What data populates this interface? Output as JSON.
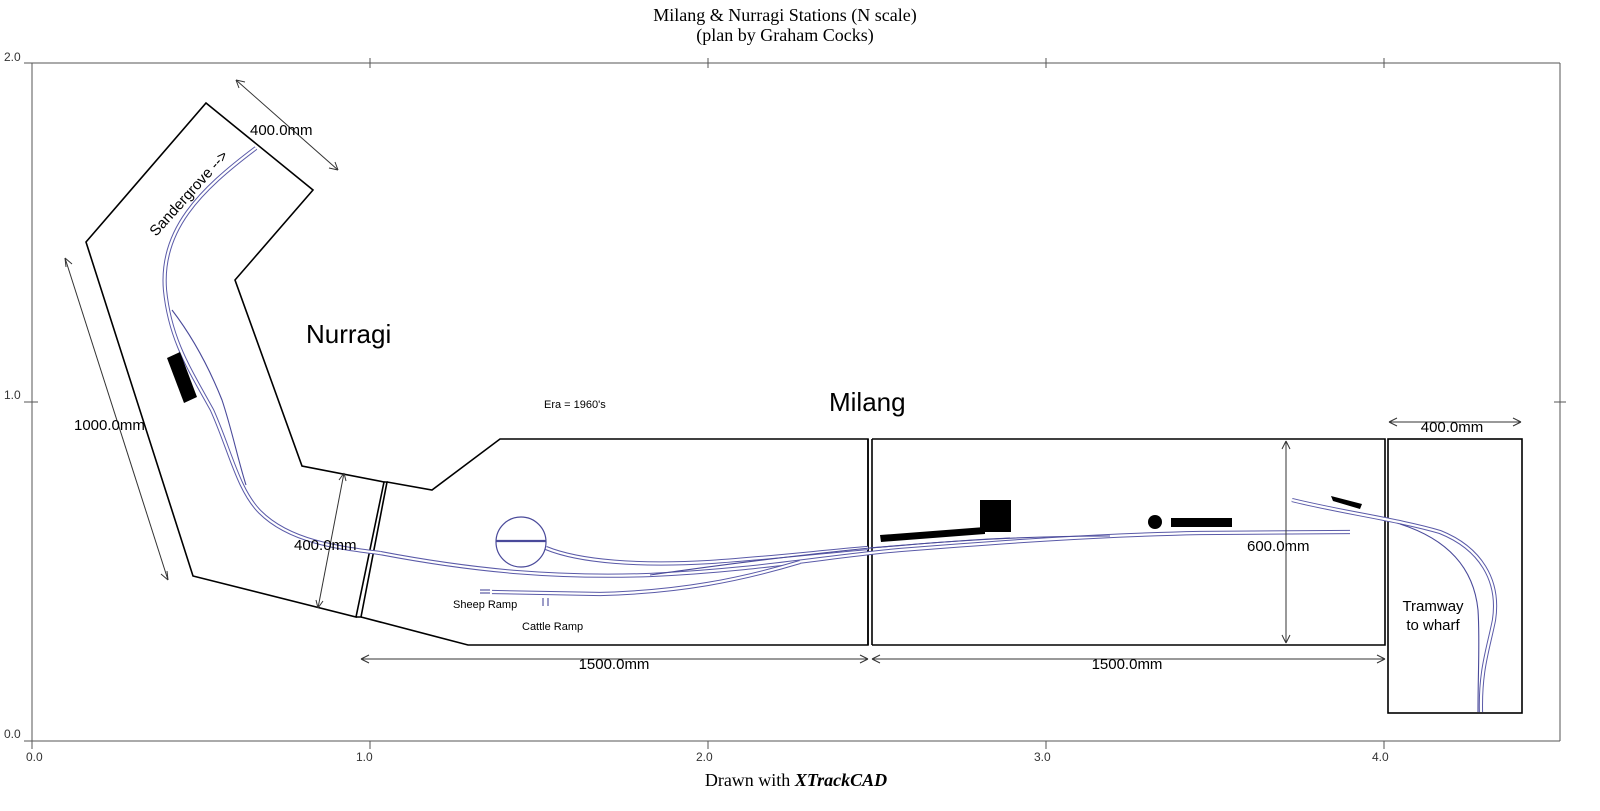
{
  "title": {
    "line1": "Milang & Nurragi Stations (N scale)",
    "line2": "(plan by Graham Cocks)"
  },
  "footer": {
    "prefix": "Drawn with ",
    "app": "XTrackCAD"
  },
  "axes": {
    "x_ticks": [
      "0.0",
      "1.0",
      "2.0",
      "3.0",
      "4.0"
    ],
    "y_ticks": [
      "2.0",
      "1.0",
      "0.0"
    ]
  },
  "labels": {
    "nurragi": "Nurragi",
    "milang": "Milang",
    "era": "Era = 1960's",
    "sandergrove": "Sandergrove -->",
    "sheep_ramp": "Sheep Ramp",
    "cattle_ramp": "Cattle Ramp",
    "tramway_line1": "Tramway",
    "tramway_line2": "to wharf"
  },
  "dimensions": {
    "top_width": "400.0mm",
    "left_length": "1000.0mm",
    "lower_width": "400.0mm",
    "milang_left": "1500.0mm",
    "milang_right": "1500.0mm",
    "milang_height": "600.0mm",
    "tramway_width": "400.0mm"
  },
  "colors": {
    "track": "#4a4a9a",
    "benchwork": "#000000",
    "background": "#ffffff"
  }
}
